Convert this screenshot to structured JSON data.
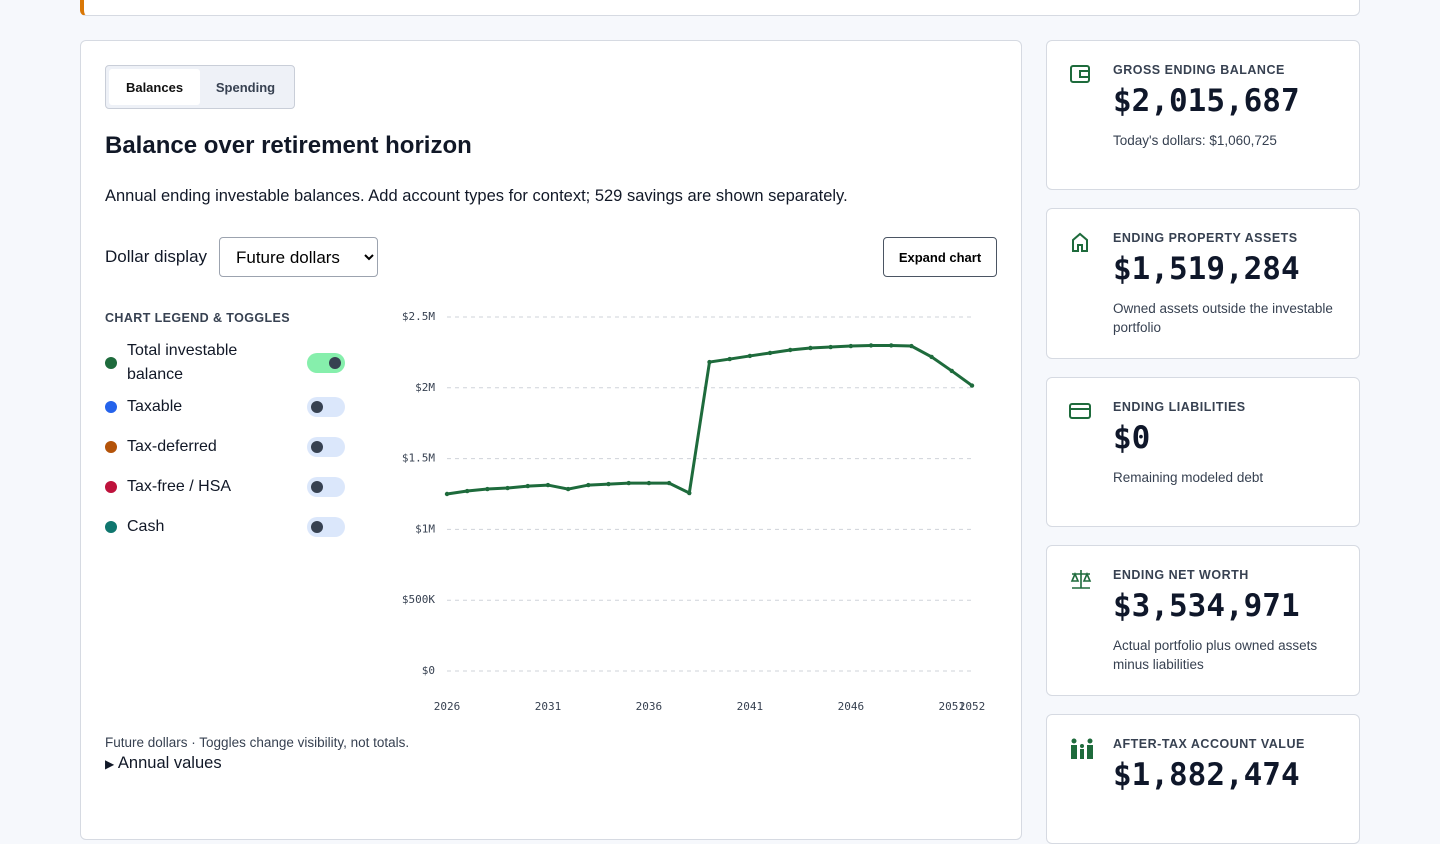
{
  "tabs": [
    "Balances",
    "Spending"
  ],
  "heading": "Balance over retirement horizon",
  "description": "Annual ending investable balances. Add account types for context; 529 savings are shown separately.",
  "dollar_display": {
    "label": "Dollar display",
    "selected": "Future dollars"
  },
  "expand_button": "Expand chart",
  "legend_title": "CHART LEGEND & TOGGLES",
  "chart_data": {
    "type": "line",
    "x": [
      2026,
      2027,
      2028,
      2029,
      2030,
      2031,
      2032,
      2033,
      2034,
      2035,
      2036,
      2037,
      2038,
      2039,
      2040,
      2041,
      2042,
      2043,
      2044,
      2045,
      2046,
      2047,
      2048,
      2049,
      2050,
      2051,
      2052
    ],
    "series": [
      {
        "name": "Total investable balance",
        "color": "#1e6b3c",
        "visible": true,
        "values": [
          1250000,
          1271000,
          1285000,
          1292000,
          1306000,
          1313000,
          1285000,
          1313000,
          1320000,
          1327000,
          1327000,
          1327000,
          1257000,
          2182000,
          2203000,
          2225000,
          2246000,
          2267000,
          2281000,
          2288000,
          2295000,
          2299000,
          2299000,
          2295000,
          2218000,
          2119000,
          2015687
        ]
      }
    ],
    "hidden_series": [
      {
        "name": "Taxable",
        "color": "#2563eb",
        "visible": false
      },
      {
        "name": "Tax-deferred",
        "color": "#b45309",
        "visible": false
      },
      {
        "name": "Tax-free / HSA",
        "color": "#be123c",
        "visible": false
      },
      {
        "name": "Cash",
        "color": "#0f766e",
        "visible": false
      }
    ],
    "xlim": [
      2026,
      2052
    ],
    "xticks": [
      2026,
      2031,
      2036,
      2041,
      2046,
      2051,
      2052
    ],
    "ylim": [
      0,
      2500000
    ],
    "yticks": [
      {
        "value": 0,
        "label": "$0"
      },
      {
        "value": 500000,
        "label": "$500K"
      },
      {
        "value": 1000000,
        "label": "$1M"
      },
      {
        "value": 1500000,
        "label": "$1.5M"
      },
      {
        "value": 2000000,
        "label": "$2M"
      },
      {
        "value": 2500000,
        "label": "$2.5M"
      }
    ],
    "grid": true
  },
  "footnote": "Future dollars · Toggles change visibility, not totals.",
  "details": "Annual values",
  "cards": [
    {
      "title": "GROSS ENDING BALANCE",
      "value": "$2,015,687",
      "note": "Today's dollars: $1,060,725"
    },
    {
      "title": "ENDING PROPERTY ASSETS",
      "value": "$1,519,284",
      "note": "Owned assets outside the investable portfolio"
    },
    {
      "title": "ENDING LIABILITIES",
      "value": "$0",
      "note": "Remaining modeled debt"
    },
    {
      "title": "ENDING NET WORTH",
      "value": "$3,534,971",
      "note": "Actual portfolio plus owned assets minus liabilities"
    },
    {
      "title": "AFTER-TAX ACCOUNT VALUE",
      "value": "$1,882,474"
    }
  ]
}
